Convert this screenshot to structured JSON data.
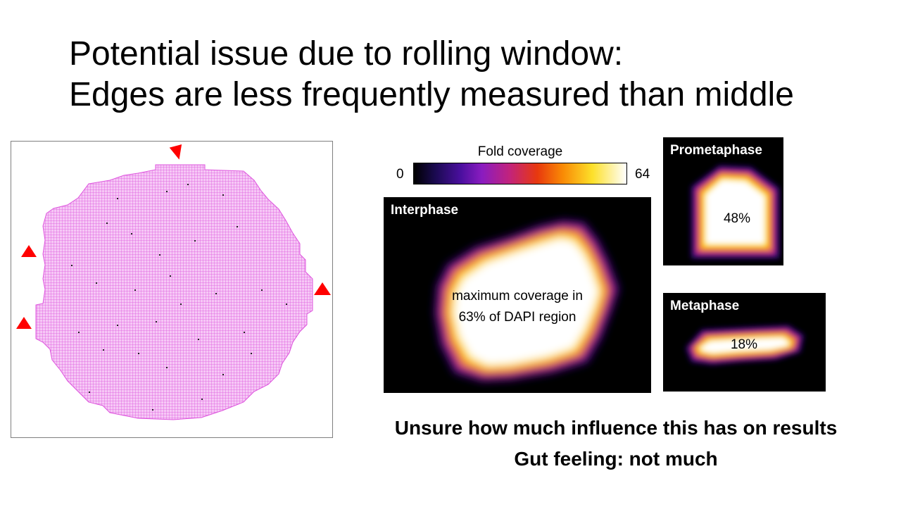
{
  "slide": {
    "title_line1": "Potential issue due to rolling window:",
    "title_line2": "Edges are less frequently measured than middle"
  },
  "colorbar": {
    "label": "Fold coverage",
    "min": "0",
    "max": "64",
    "colors": [
      "#000000",
      "#4a0f9e",
      "#c2237c",
      "#f98a05",
      "#fde02a",
      "#ffffff"
    ]
  },
  "panels": {
    "interphase": {
      "label": "Interphase",
      "text_line1": "maximum coverage in",
      "text_line2": "63% of DAPI region"
    },
    "prometaphase": {
      "label": "Prometaphase",
      "percent": "48%"
    },
    "metaphase": {
      "label": "Metaphase",
      "percent": "18%"
    }
  },
  "conclusion": {
    "line1": "Unsure how much influence this has on results",
    "line2": "Gut feeling: not much"
  },
  "colors": {
    "grid": "#e040e0",
    "arrow": "#ff0000"
  }
}
